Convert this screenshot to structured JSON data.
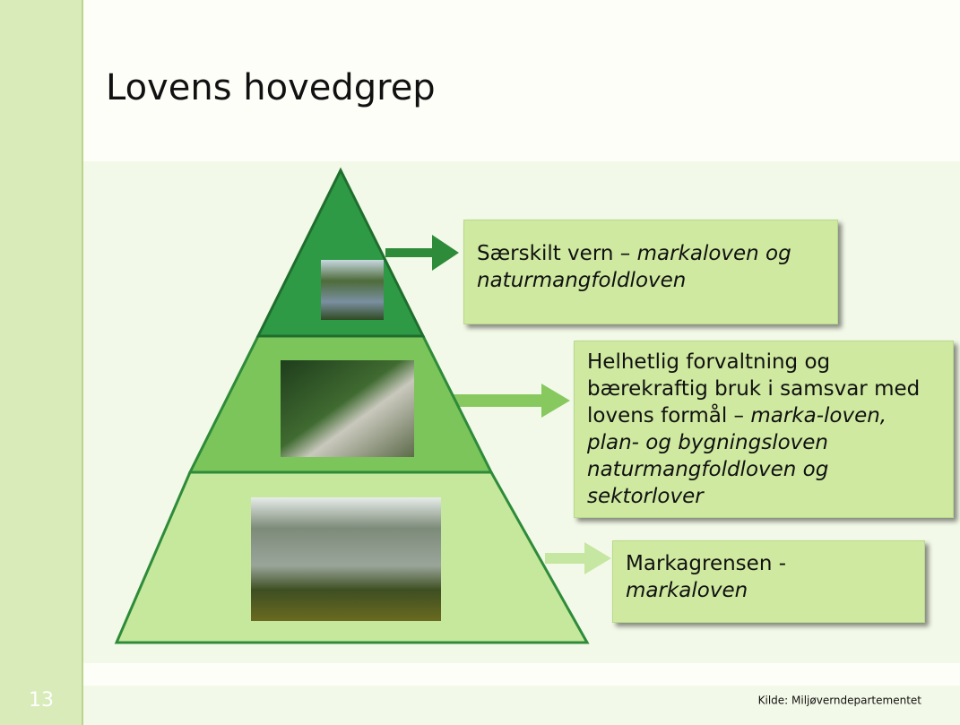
{
  "slide": {
    "title": "Lovens hovedgrep",
    "number": "13",
    "source": "Kilde: Miljøverndepartementet",
    "boxes": [
      {
        "plain": "Særskilt vern – ",
        "italic": "markaloven og naturmangfoldloven"
      },
      {
        "plain": "Helhetlig forvaltning og bærekraftig bruk i samsvar med lovens formål – ",
        "italic": "marka-loven, plan- og bygningsloven naturmangfoldloven og sektorlover"
      },
      {
        "plain": "Markagrensen - ",
        "italic": "markaloven"
      }
    ]
  }
}
